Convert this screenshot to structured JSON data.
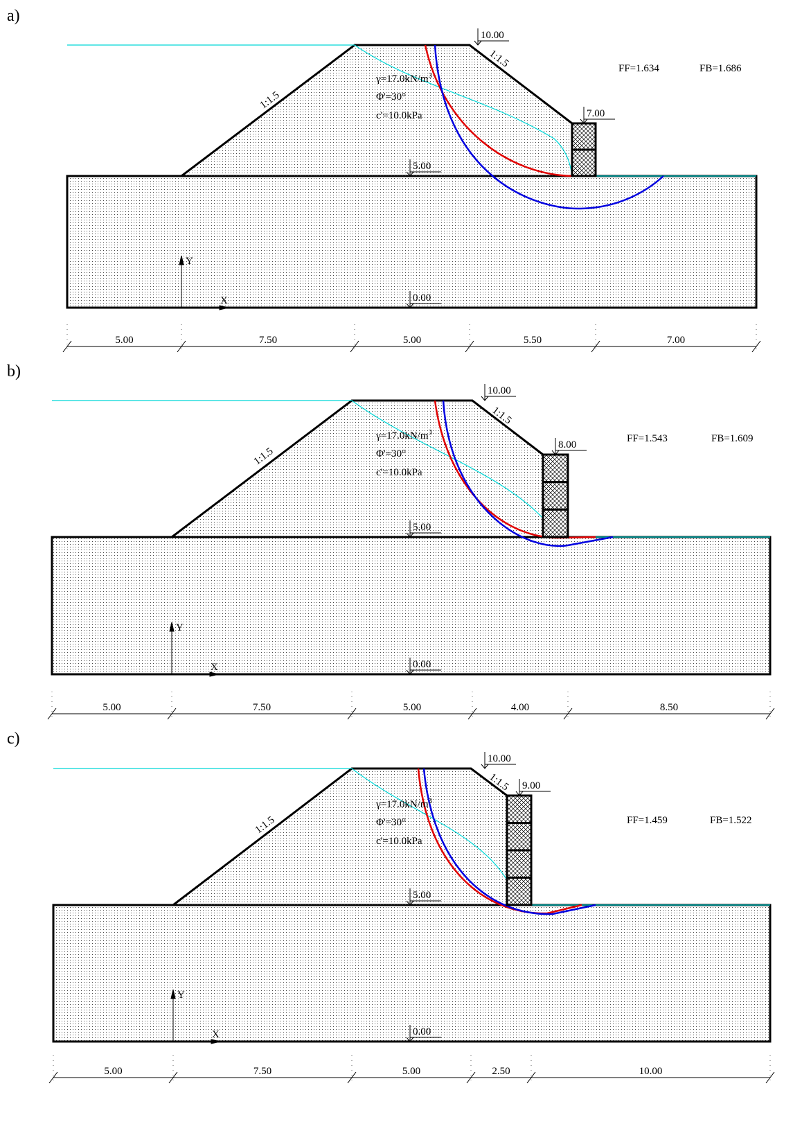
{
  "panels": [
    {
      "label": "a)",
      "elevations": {
        "crest": "10.00",
        "wall_top": "7.00",
        "base": "5.00",
        "bottom": "0.00"
      },
      "slopes": {
        "left": "1:1.5",
        "right": "1:1.5"
      },
      "soil": {
        "unit_weight": "γ=17.0kN/m",
        "unit_weight_sup": "3",
        "friction": "Φ'=30°",
        "cohesion": "c'=10.0kPa"
      },
      "ff": "FF=1.634",
      "fb": "FB=1.686",
      "axis_x": "X",
      "axis_y": "Y",
      "dimensions": [
        "5.00",
        "7.50",
        "5.00",
        "5.50",
        "7.00"
      ]
    },
    {
      "label": "b)",
      "elevations": {
        "crest": "10.00",
        "wall_top": "8.00",
        "base": "5.00",
        "bottom": "0.00"
      },
      "slopes": {
        "left": "1:1.5",
        "right": "1:1.5"
      },
      "soil": {
        "unit_weight": "γ=17.0kN/m",
        "unit_weight_sup": "3",
        "friction": "Φ'=30°",
        "cohesion": "c'=10.0kPa"
      },
      "ff": "FF=1.543",
      "fb": "FB=1.609",
      "axis_x": "X",
      "axis_y": "Y",
      "dimensions": [
        "5.00",
        "7.50",
        "5.00",
        "4.00",
        "8.50"
      ]
    },
    {
      "label": "c)",
      "elevations": {
        "crest": "10.00",
        "wall_top": "9.00",
        "base": "5.00",
        "bottom": "0.00"
      },
      "slopes": {
        "left": "1:1.5",
        "right": "1:1.5"
      },
      "soil": {
        "unit_weight": "γ=17.0kN/m",
        "unit_weight_sup": "3",
        "friction": "Φ'=30°",
        "cohesion": "c'=10.0kPa"
      },
      "ff": "FF=1.459",
      "fb": "FB=1.522",
      "axis_x": "X",
      "axis_y": "Y",
      "dimensions": [
        "5.00",
        "7.50",
        "5.00",
        "2.50",
        "10.00"
      ]
    }
  ]
}
